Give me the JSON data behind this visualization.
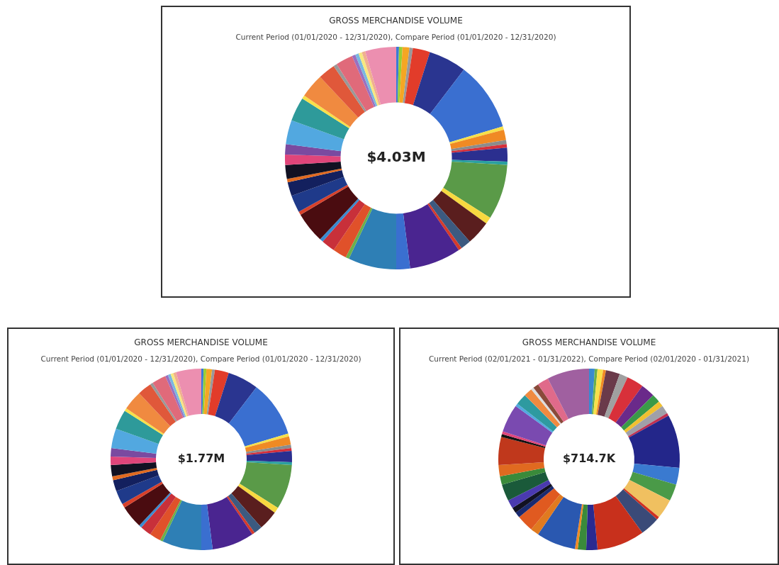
{
  "chart_data": [
    {
      "type": "donut",
      "title": "GROSS MERCHANDISE VOLUME",
      "subtitle": "Current Period (01/01/2020 - 12/31/2020), Compare Period (01/01/2020 - 12/31/2020)",
      "annotations": [
        "$4.03M"
      ],
      "categories": [
        null,
        null,
        null,
        null,
        null,
        null,
        null,
        null,
        null,
        null,
        null,
        null,
        null,
        null,
        null,
        null,
        null,
        null,
        null,
        null,
        null,
        null,
        null,
        null,
        null,
        null,
        null,
        null,
        null,
        null,
        null,
        null,
        null,
        null,
        null,
        null,
        null,
        null,
        null,
        null,
        null,
        null,
        null,
        null,
        null
      ],
      "values": [
        0.4,
        0.5,
        1,
        0.5,
        2.5,
        5.5,
        10,
        0.5,
        1.5,
        0.6,
        0.5,
        2,
        0.5,
        8,
        1,
        3.5,
        1.5,
        0.5,
        7.5,
        2,
        7,
        0.5,
        2,
        2,
        0.5,
        4.5,
        0.5,
        2.5,
        2,
        0.5,
        2,
        1.5,
        1.5,
        3.5,
        3.5,
        0.5,
        3.5,
        2.5,
        0.5,
        2.5,
        0.5,
        0.5,
        0.5,
        0.5,
        4.5
      ],
      "colors": [
        "#3a7bd5",
        "#9acd32",
        "#f5a623",
        "#999999",
        "#e23c2a",
        "#2a3590",
        "#3a6fd0",
        "#f7e04a",
        "#f08a24",
        "#8c8c8c",
        "#d62f3a",
        "#2b2f8f",
        "#2aa0a0",
        "#5a9a48",
        "#f7d940",
        "#5a1e1e",
        "#3c5a80",
        "#d63a2a",
        "#4a2590",
        "#3a6fd0",
        "#2e7fb5",
        "#6ab04c",
        "#e0512a",
        "#c8303a",
        "#3a8ad0",
        "#4a0c10",
        "#d8402a",
        "#1f3a8a",
        "#13205e",
        "#e06a20",
        "#111122",
        "#e0457a",
        "#7a4aa0",
        "#52a8e0",
        "#2e9a9a",
        "#f7e04a",
        "#f08a40",
        "#e0583a",
        "#999999",
        "#e06a7a",
        "#9a70c0",
        "#7ab8e0",
        "#f7e880",
        "#f0b090",
        "#ec8fb0"
      ]
    },
    {
      "type": "donut",
      "title": "GROSS MERCHANDISE VOLUME",
      "subtitle": "Current Period (01/01/2020 - 12/31/2020), Compare Period (01/01/2020 - 12/31/2020)",
      "annotations": [
        "$1.77M"
      ],
      "categories": [
        null,
        null,
        null,
        null,
        null,
        null,
        null,
        null,
        null,
        null,
        null,
        null,
        null,
        null,
        null,
        null,
        null,
        null,
        null,
        null,
        null,
        null,
        null,
        null,
        null,
        null,
        null,
        null,
        null,
        null,
        null,
        null,
        null,
        null,
        null,
        null,
        null,
        null,
        null,
        null,
        null,
        null,
        null,
        null,
        null
      ],
      "values": [
        0.4,
        0.5,
        1,
        0.5,
        2.5,
        5.5,
        10,
        0.5,
        1.5,
        0.6,
        0.5,
        2,
        0.5,
        8,
        1,
        3.5,
        1.5,
        0.5,
        7.5,
        2,
        7,
        0.5,
        2,
        2,
        0.5,
        4.1,
        0.7,
        2.5,
        2,
        0.7,
        2,
        1.5,
        1.5,
        3.5,
        3.5,
        0.5,
        3.5,
        2.5,
        0.5,
        2.5,
        0.5,
        0.5,
        0.5,
        0.5,
        4.5
      ],
      "colors": [
        "#3a7bd5",
        "#9acd32",
        "#f5a623",
        "#999999",
        "#e23c2a",
        "#2a3590",
        "#3a6fd0",
        "#f7e04a",
        "#f08a24",
        "#8c8c8c",
        "#d62f3a",
        "#2b2f8f",
        "#2aa0a0",
        "#5a9a48",
        "#f7d940",
        "#5a1e1e",
        "#3c5a80",
        "#d63a2a",
        "#4a2590",
        "#3a6fd0",
        "#2e7fb5",
        "#6ab04c",
        "#e0512a",
        "#c8303a",
        "#3a8ad0",
        "#4a0c10",
        "#d8402a",
        "#1f3a8a",
        "#13205e",
        "#e06a20",
        "#111122",
        "#e0457a",
        "#7a4aa0",
        "#52a8e0",
        "#2e9a9a",
        "#f7e04a",
        "#f08a40",
        "#e0583a",
        "#999999",
        "#e06a7a",
        "#9a70c0",
        "#7ab8e0",
        "#f7e880",
        "#f0b090",
        "#ec8fb0"
      ]
    },
    {
      "type": "donut",
      "title": "GROSS MERCHANDISE VOLUME",
      "subtitle": "Current Period (02/01/2021 - 01/31/2022), Compare Period (02/01/2020 - 01/31/2021)",
      "annotations": [
        "$714.7K"
      ],
      "categories": [
        null,
        null,
        null,
        null,
        null,
        null,
        null,
        null,
        null,
        null,
        null,
        null,
        null,
        null,
        null,
        null,
        null,
        null,
        null,
        null,
        null,
        null,
        null,
        null,
        null,
        null,
        null,
        null,
        null,
        null,
        null,
        null,
        null,
        null,
        null,
        null,
        null,
        null,
        null,
        null,
        null,
        null
      ],
      "values": [
        1,
        0.5,
        1,
        0.5,
        2.5,
        1.5,
        3,
        2.5,
        1.5,
        1,
        1.5,
        0.5,
        9.5,
        3,
        3,
        3.5,
        0.5,
        3.5,
        8.5,
        2,
        1.5,
        0.5,
        7,
        1.5,
        3,
        1,
        1,
        1.5,
        3,
        1.5,
        2,
        5,
        0.5,
        0.5,
        5,
        0.5,
        2,
        1.5,
        0.5,
        1,
        2,
        7.5
      ],
      "colors": [
        "#3a8ad0",
        "#6ab04c",
        "#f7e04a",
        "#f08a24",
        "#6a3a4a",
        "#a0a0a0",
        "#d8303a",
        "#6a2a8a",
        "#3a9a48",
        "#f0c030",
        "#a0a0a8",
        "#c03050",
        "#23268a",
        "#3a7ad0",
        "#4a9a48",
        "#f0c060",
        "#d03020",
        "#3a4a78",
        "#c8301c",
        "#2a2a90",
        "#3a8a3a",
        "#f08a24",
        "#2a58b0",
        "#e07a20",
        "#e05a20",
        "#1a2a70",
        "#111122",
        "#4a3ab0",
        "#1a5a3a",
        "#3a8a3a",
        "#e06a20",
        "#c0381c",
        "#111111",
        "#e0457a",
        "#7a4ab0",
        "#52a8e0",
        "#2e9aa0",
        "#f08a40",
        "#dddddd",
        "#8a4a3a",
        "#e06a8a",
        "#a060a0"
      ]
    }
  ]
}
